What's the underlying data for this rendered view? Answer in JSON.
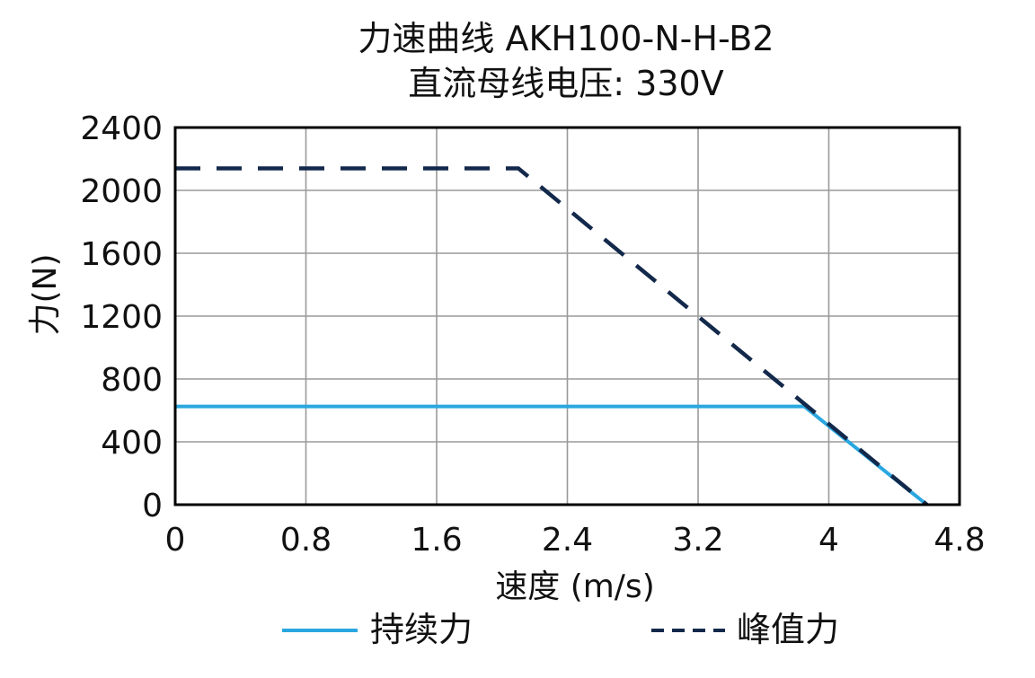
{
  "chart_data": {
    "type": "line",
    "title": "力速曲线 AKH100-N-H-B2",
    "subtitle": "直流母线电压: 330V",
    "xlabel": "速度 (m/s)",
    "ylabel": "力(N)",
    "xlim": [
      0,
      4.8
    ],
    "ylim": [
      0,
      2400
    ],
    "x_ticks": [
      "0",
      "0.8",
      "1.6",
      "2.4",
      "3.2",
      "4",
      "4.8"
    ],
    "y_ticks": [
      "0",
      "400",
      "800",
      "1200",
      "1600",
      "2000",
      "2400"
    ],
    "grid": true,
    "legend_position": "bottom",
    "series": [
      {
        "name": "持续力",
        "color": "#2aa7e0",
        "style": "solid",
        "x": [
          0,
          3.85,
          4.6
        ],
        "y": [
          625,
          625,
          0
        ]
      },
      {
        "name": "峰值力",
        "color": "#13294b",
        "style": "dashed",
        "x": [
          0,
          2.1,
          4.6
        ],
        "y": [
          2140,
          2140,
          0
        ]
      }
    ]
  }
}
